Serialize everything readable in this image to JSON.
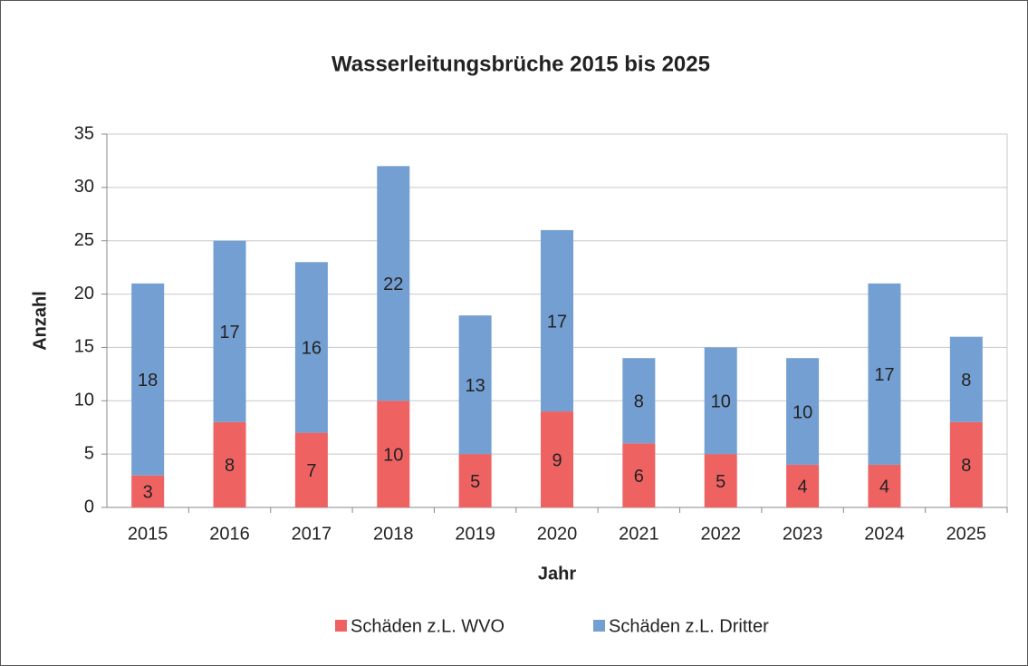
{
  "chart_data": {
    "type": "bar",
    "stacked": true,
    "title": "Wasserleitungsbrüche 2015 bis 2025",
    "x_label": "Jahr",
    "y_label": "Anzahl",
    "categories": [
      "2015",
      "2016",
      "2017",
      "2018",
      "2019",
      "2020",
      "2021",
      "2022",
      "2023",
      "2024",
      "2025"
    ],
    "series": [
      {
        "name": "Schäden z.L. WVO",
        "color": "#ef6262",
        "values": [
          3,
          8,
          7,
          10,
          5,
          9,
          6,
          5,
          4,
          4,
          8
        ]
      },
      {
        "name": "Schäden z.L. Dritter",
        "color": "#749fd2",
        "values": [
          18,
          17,
          16,
          22,
          13,
          17,
          8,
          10,
          10,
          17,
          8
        ]
      }
    ],
    "ylim": [
      0,
      35
    ],
    "yticks": [
      0,
      5,
      10,
      15,
      20,
      25,
      30,
      35
    ],
    "grid": true,
    "legend": "bottom"
  }
}
